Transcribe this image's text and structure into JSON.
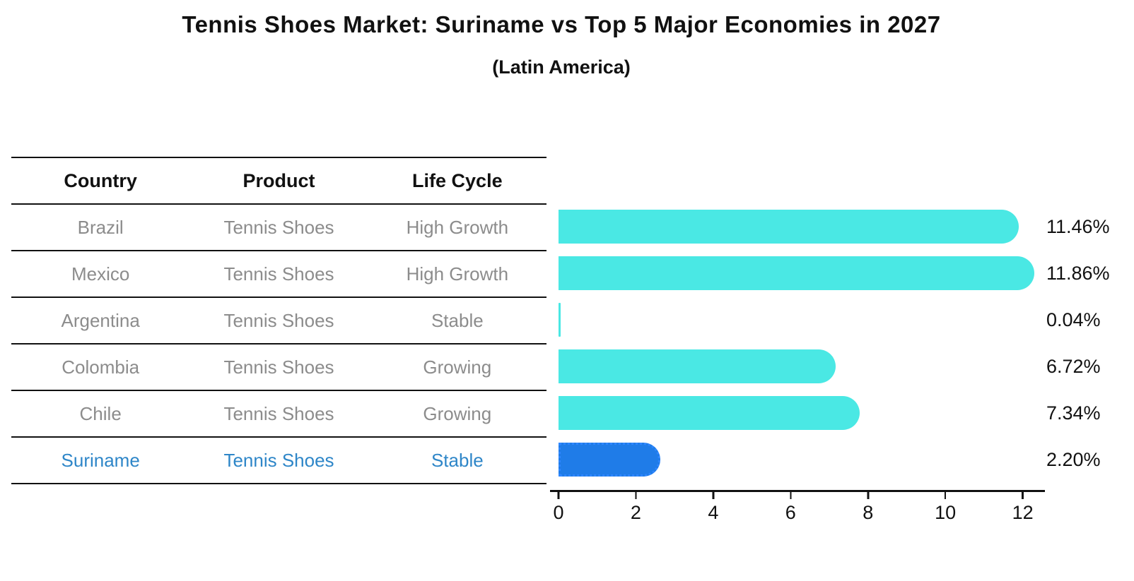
{
  "header": {
    "title": "Tennis Shoes Market: Suriname vs Top 5 Major Economies in 2027",
    "subtitle": "(Latin America)"
  },
  "table": {
    "headers": [
      "Country",
      "Product",
      "Life Cycle"
    ],
    "rows": [
      {
        "country": "Brazil",
        "product": "Tennis Shoes",
        "life_cycle": "High Growth"
      },
      {
        "country": "Mexico",
        "product": "Tennis Shoes",
        "life_cycle": "High Growth"
      },
      {
        "country": "Argentina",
        "product": "Tennis Shoes",
        "life_cycle": "Stable"
      },
      {
        "country": "Colombia",
        "product": "Tennis Shoes",
        "life_cycle": "Growing"
      },
      {
        "country": "Chile",
        "product": "Tennis Shoes",
        "life_cycle": "Growing"
      },
      {
        "country": "Suriname",
        "product": "Tennis Shoes",
        "life_cycle": "Stable"
      }
    ],
    "colors": {
      "header_text": "#111111",
      "row_text": "#8c8c8c",
      "highlight_text": "#2e86c8",
      "line": "#111111"
    }
  },
  "chart_data": {
    "type": "bar",
    "orientation": "horizontal",
    "title": "Tennis Shoes Market: Suriname vs Top 5 Major Economies in 2027",
    "subtitle": "(Latin America)",
    "categories": [
      "Brazil",
      "Mexico",
      "Argentina",
      "Colombia",
      "Chile",
      "Suriname"
    ],
    "values": [
      11.46,
      11.86,
      0.04,
      6.72,
      7.34,
      2.2
    ],
    "value_labels": [
      "11.46%",
      "11.86%",
      "0.04%",
      "6.72%",
      "7.34%",
      "2.20%"
    ],
    "xlabel": "",
    "ylabel": "",
    "xlim": [
      0,
      12.5
    ],
    "xticks": [
      0,
      2,
      4,
      6,
      8,
      10,
      12
    ],
    "grid": false,
    "legend": null,
    "bar_color": "#4ae8e4",
    "highlight_color": "#1f7ce8",
    "highlight_edge_color": "#2e86ff",
    "highlight_index": 5
  }
}
